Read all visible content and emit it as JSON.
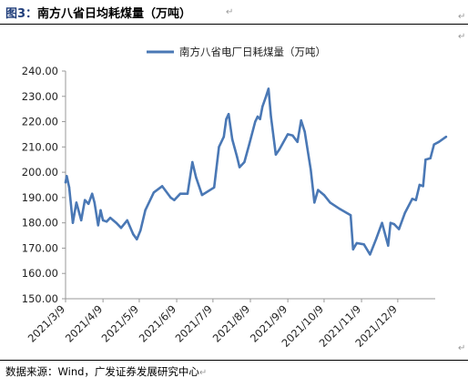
{
  "figure": {
    "label": "图3：",
    "title": "南方八省日均耗煤量（万吨）",
    "source": "数据来源：Wind，广发证券发展研究中心",
    "return_mark": "↵",
    "rule_color": "#000000"
  },
  "chart_data": {
    "type": "line",
    "title": "",
    "xlabel": "",
    "ylabel": "",
    "ylim": [
      150,
      240
    ],
    "yticks": [
      "150.00",
      "160.00",
      "170.00",
      "180.00",
      "190.00",
      "200.00",
      "210.00",
      "220.00",
      "230.00",
      "240.00"
    ],
    "xtick_labels": [
      "2021/3/9",
      "2021/4/9",
      "2021/5/9",
      "2021/6/9",
      "2021/7/9",
      "2021/8/9",
      "2021/9/9",
      "2021/10/9",
      "2021/11/9",
      "2021/12/9"
    ],
    "x_range": [
      "2021-03-09",
      "2022-01-09"
    ],
    "grid": false,
    "legend": "top-center",
    "series": [
      {
        "name": "南方八省电厂日耗煤量（万吨）",
        "color": "#4a78b5",
        "points": [
          [
            "2021-03-09",
            196
          ],
          [
            "2021-03-10",
            198.5
          ],
          [
            "2021-03-12",
            194
          ],
          [
            "2021-03-15",
            180
          ],
          [
            "2021-03-18",
            188
          ],
          [
            "2021-03-22",
            181
          ],
          [
            "2021-03-25",
            189
          ],
          [
            "2021-03-28",
            187.5
          ],
          [
            "2021-03-31",
            191.5
          ],
          [
            "2021-04-02",
            188
          ],
          [
            "2021-04-05",
            179
          ],
          [
            "2021-04-07",
            185
          ],
          [
            "2021-04-09",
            181
          ],
          [
            "2021-04-12",
            180.5
          ],
          [
            "2021-04-15",
            182
          ],
          [
            "2021-04-20",
            180
          ],
          [
            "2021-04-24",
            178
          ],
          [
            "2021-04-29",
            181
          ],
          [
            "2021-05-04",
            175.5
          ],
          [
            "2021-05-07",
            173.5
          ],
          [
            "2021-05-10",
            177
          ],
          [
            "2021-05-14",
            185
          ],
          [
            "2021-05-21",
            192
          ],
          [
            "2021-05-28",
            194.5
          ],
          [
            "2021-06-04",
            190
          ],
          [
            "2021-06-07",
            189
          ],
          [
            "2021-06-12",
            191.5
          ],
          [
            "2021-06-18",
            191.5
          ],
          [
            "2021-06-22",
            204
          ],
          [
            "2021-06-25",
            198
          ],
          [
            "2021-06-30",
            191
          ],
          [
            "2021-07-10",
            194
          ],
          [
            "2021-07-14",
            210
          ],
          [
            "2021-07-18",
            214
          ],
          [
            "2021-07-20",
            221
          ],
          [
            "2021-07-22",
            223
          ],
          [
            "2021-07-25",
            213
          ],
          [
            "2021-07-29",
            206
          ],
          [
            "2021-07-31",
            202
          ],
          [
            "2021-08-04",
            204
          ],
          [
            "2021-08-08",
            211
          ],
          [
            "2021-08-13",
            220
          ],
          [
            "2021-08-15",
            222
          ],
          [
            "2021-08-17",
            221
          ],
          [
            "2021-08-19",
            226
          ],
          [
            "2021-08-22",
            230
          ],
          [
            "2021-08-24",
            233
          ],
          [
            "2021-08-26",
            222
          ],
          [
            "2021-08-30",
            207
          ],
          [
            "2021-09-02",
            209
          ],
          [
            "2021-09-09",
            215
          ],
          [
            "2021-09-13",
            214.5
          ],
          [
            "2021-09-17",
            212
          ],
          [
            "2021-09-20",
            220.5
          ],
          [
            "2021-09-23",
            216
          ],
          [
            "2021-09-28",
            201
          ],
          [
            "2021-10-01",
            188
          ],
          [
            "2021-10-04",
            193
          ],
          [
            "2021-10-09",
            191
          ],
          [
            "2021-10-14",
            188
          ],
          [
            "2021-10-22",
            185.5
          ],
          [
            "2021-10-31",
            183
          ],
          [
            "2021-11-02",
            169.5
          ],
          [
            "2021-11-05",
            172
          ],
          [
            "2021-11-11",
            171.5
          ],
          [
            "2021-11-16",
            167.5
          ],
          [
            "2021-11-21",
            173.5
          ],
          [
            "2021-11-26",
            180
          ],
          [
            "2021-12-01",
            171
          ],
          [
            "2021-12-03",
            180
          ],
          [
            "2021-12-06",
            179.5
          ],
          [
            "2021-12-10",
            177.5
          ],
          [
            "2021-12-15",
            184
          ],
          [
            "2021-12-21",
            189.5
          ],
          [
            "2021-12-24",
            189
          ],
          [
            "2021-12-27",
            195
          ],
          [
            "2021-12-30",
            194.5
          ],
          [
            "2022-01-01",
            205
          ],
          [
            "2022-01-05",
            205.5
          ],
          [
            "2022-01-08",
            211
          ],
          [
            "2022-01-12",
            212
          ],
          [
            "2022-01-18",
            214
          ]
        ]
      }
    ]
  }
}
